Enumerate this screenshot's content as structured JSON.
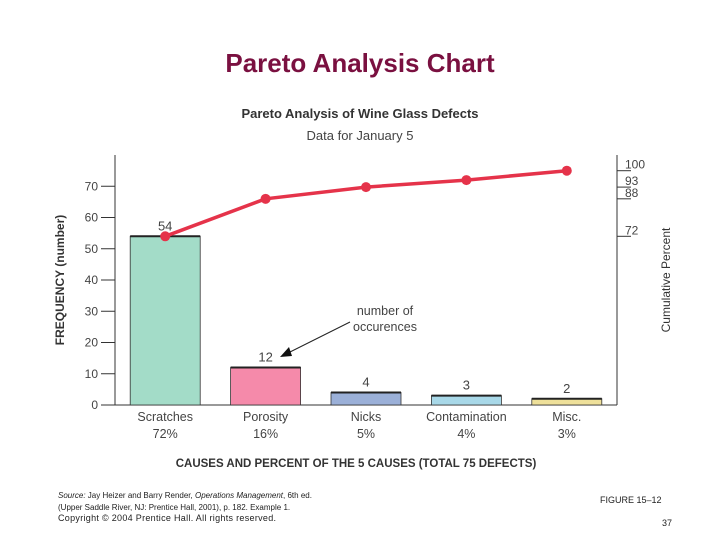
{
  "slide": {
    "title": "Pareto Analysis Chart",
    "source_label": "Source:",
    "source_text_1": " Jay Heizer and Barry Render, ",
    "source_book": "Operations Management",
    "source_text_2": ", 6th ed.",
    "source_line2": "(Upper Saddle River, NJ: Prentice Hall, 2001), p. 182. Example 1.",
    "copyright": "Copyright © 2004 Prentice Hall. All rights reserved.",
    "figure_label": "FIGURE 15–12",
    "page_number": "37"
  },
  "chart_data": {
    "type": "bar",
    "title": "Pareto Analysis of Wine Glass Defects",
    "subtitle": "Data for January 5",
    "categories": [
      "Scratches",
      "Porosity",
      "Nicks",
      "Contamination",
      "Misc."
    ],
    "category_percents": [
      "72%",
      "16%",
      "5%",
      "4%",
      "3%"
    ],
    "values": [
      54,
      12,
      4,
      3,
      2
    ],
    "bar_colors": [
      "#a3dcc8",
      "#f58aaa",
      "#9bb0d8",
      "#a8d8e8",
      "#eee09a"
    ],
    "line": {
      "values": [
        72,
        88,
        93,
        96,
        100
      ],
      "color": "#e5334a"
    },
    "xlabel": "CAUSES AND PERCENT OF THE 5 CAUSES (TOTAL 75 DEFECTS)",
    "ylabel": "FREQUENCY (number)",
    "y2label": "Cumulative Percent",
    "ylim": [
      0,
      80
    ],
    "yticks": [
      0,
      10,
      20,
      30,
      40,
      50,
      60,
      70
    ],
    "y2lim": [
      0,
      106.7
    ],
    "y2ticks": [
      72,
      88,
      93,
      100
    ],
    "annotation": "number of occurences",
    "grid": false
  }
}
